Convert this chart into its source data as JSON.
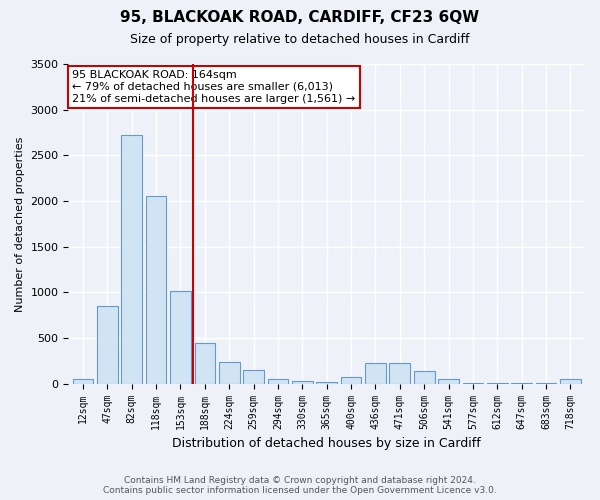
{
  "title": "95, BLACKOAK ROAD, CARDIFF, CF23 6QW",
  "subtitle": "Size of property relative to detached houses in Cardiff",
  "xlabel": "Distribution of detached houses by size in Cardiff",
  "ylabel": "Number of detached properties",
  "footer_line1": "Contains HM Land Registry data © Crown copyright and database right 2024.",
  "footer_line2": "Contains public sector information licensed under the Open Government Licence v3.0.",
  "annotation_line1": "95 BLACKOAK ROAD: 164sqm",
  "annotation_line2": "← 79% of detached houses are smaller (6,013)",
  "annotation_line3": "21% of semi-detached houses are larger (1,561) →",
  "vline_position": 4.5,
  "bar_color": "#d0e4f4",
  "bar_edge_color": "#6699cc",
  "vline_color": "#cc0000",
  "annotation_box_edge_color": "#cc0000",
  "annotation_box_face_color": "#ffffff",
  "background_color": "#eef2f8",
  "grid_color": "#ffffff",
  "categories": [
    "12sqm",
    "47sqm",
    "82sqm",
    "118sqm",
    "153sqm",
    "188sqm",
    "224sqm",
    "259sqm",
    "294sqm",
    "330sqm",
    "365sqm",
    "400sqm",
    "436sqm",
    "471sqm",
    "506sqm",
    "541sqm",
    "577sqm",
    "612sqm",
    "647sqm",
    "683sqm",
    "718sqm"
  ],
  "values": [
    50,
    850,
    2720,
    2060,
    1020,
    450,
    240,
    150,
    50,
    30,
    15,
    70,
    230,
    230,
    140,
    50,
    10,
    5,
    5,
    5,
    50
  ],
  "ylim": [
    0,
    3500
  ],
  "yticks": [
    0,
    500,
    1000,
    1500,
    2000,
    2500,
    3000,
    3500
  ]
}
